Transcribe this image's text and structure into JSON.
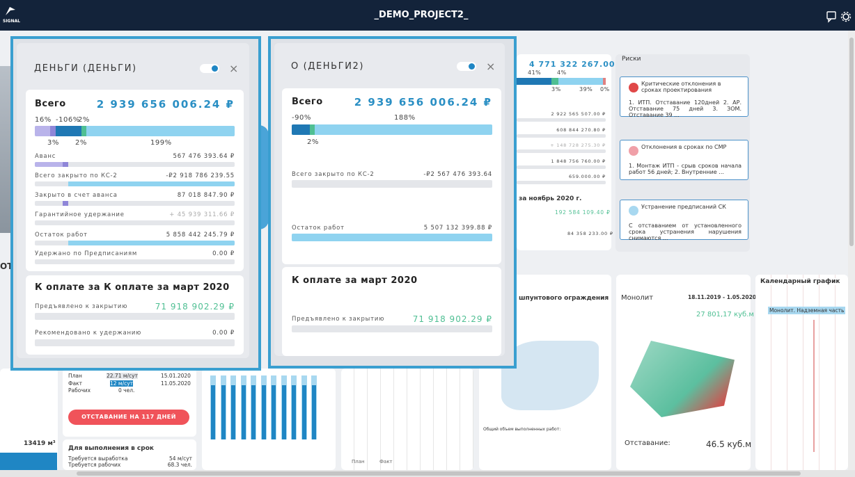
{
  "header": {
    "logo": "SIGNAL",
    "title": "_DEMO_PROJECT2_"
  },
  "panels": [
    {
      "title": "ДЕНЬГИ (ДЕНЬГИ)",
      "total": {
        "label": "Всего",
        "amount": "2 939 656 006.24 ₽",
        "top_labels": [
          "16%",
          "-106%",
          "2%"
        ],
        "bottom_labels": [
          "3%",
          "2%",
          "199%"
        ]
      },
      "rows": [
        {
          "label": "Аванс",
          "value": "567 476 393.64 ₽"
        },
        {
          "label": "Всего закрыто по КС-2",
          "value": "-₽2 918 786 239.55"
        },
        {
          "label": "Закрыто в счет аванса",
          "value": "87 018 847.90 ₽"
        },
        {
          "label": "Гарантийное удержание",
          "value": "+ 45 939 311.66 ₽"
        },
        {
          "label": "Остаток работ",
          "value": "5 858 442 245.79 ₽"
        },
        {
          "label": "Удержано по Предписаниям",
          "value": "0.00 ₽"
        }
      ],
      "payment": {
        "title": "К оплате за К оплате за март 2020",
        "rows": [
          {
            "label": "Предъявлено к закрытию",
            "value": "71 918 902.29 ₽"
          },
          {
            "label": "Рекомендовано к удержанию",
            "value": "0.00 ₽"
          }
        ]
      }
    },
    {
      "title": "О (ДЕНЬГИ2)",
      "total": {
        "label": "Всего",
        "amount": "2 939 656 006.24 ₽",
        "top_labels": [
          "-90%",
          "188%"
        ],
        "bottom_labels": [
          "2%"
        ]
      },
      "rows": [
        {
          "label": "Всего закрыто по КС-2",
          "value": "-₽2 567 476 393.64"
        },
        {
          "label": "Остаток работ",
          "value": "5 507 132 399.88 ₽"
        }
      ],
      "payment": {
        "title": "К оплате за март 2020",
        "rows": [
          {
            "label": "Предъявлено к закрытию",
            "value": "71 918 902.29 ₽"
          }
        ]
      }
    }
  ],
  "background": {
    "summary": {
      "amount": "4 771 322 267.00 ₽",
      "percents": [
        "41%",
        "4%",
        "3%",
        "39%",
        "0%"
      ],
      "values": [
        "2 922 565 507.00 ₽",
        "608 844 270.80 ₽",
        "+ 148 728 275.30 ₽",
        "1 848 756 760.00 ₽",
        "659.000.00 ₽"
      ]
    },
    "month": {
      "title": "за ноябрь 2020 г.",
      "values": [
        "192 584 109.40 ₽",
        "84 358 233.00 ₽"
      ]
    },
    "risks": {
      "title": "Риски",
      "items": [
        {
          "title": "Критические отклонения в сроках проектирования",
          "text": "1. ИТП. Отставание 120дней 2. АР. Отставание 75 дней 3. ЗОМ. Отставание 39 ..."
        },
        {
          "title": "Отклонения в сроках по СМР",
          "text": "1. Монтаж ИТП - срыв сроков начала работ 56 дней; 2. Внутренние ..."
        },
        {
          "title": "Устранение предписаний СК",
          "text": "С отставанием от установленного срока устранения нарушения снимаются ..."
        }
      ]
    },
    "left_label": "ОТЬ",
    "volume": "13419 м³",
    "schedule": {
      "labels": [
        "План",
        "Факт",
        "Рабочих"
      ],
      "rates": [
        "22.71 м/сут",
        "12 м/сут",
        "0 чел."
      ],
      "dates": [
        "15.01.2020",
        "11.05.2020"
      ],
      "delay": "ОТСТАВАНИЕ НА 117 ДНЕЙ",
      "ontime": {
        "title": "Для выполнения в срок",
        "rows": [
          {
            "label": "Требуется выработка",
            "value": "54 м/сут"
          },
          {
            "label": "Требуется рабочих",
            "value": "68.3 чел."
          }
        ]
      }
    },
    "chart_legend": [
      "План",
      "Факт"
    ],
    "sheet": {
      "title": "шпунтового ограждения",
      "total": "Общий объем выполненных работ:"
    },
    "monolith": {
      "title": "Монолит",
      "dates": "18.11.2019 - 1.05.2020",
      "volume": "27 801,17 куб.м",
      "lag_label": "Отставание:",
      "lag": "46.5 куб.м"
    },
    "calendar": {
      "title": "Календарный график",
      "task": "Монолит. Надземная часть"
    }
  }
}
